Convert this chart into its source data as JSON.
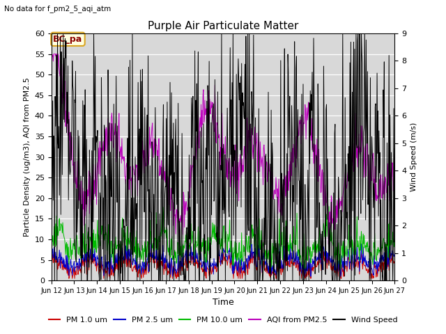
{
  "title": "Purple Air Particulate Matter",
  "subtitle": "No data for f_pm2_5_aqi_atm",
  "xlabel": "Time",
  "ylabel_left": "Particle Density (ug/m3), AQI from PM2.5",
  "ylabel_right": "Wind Speed (m/s)",
  "ylim_left": [
    0,
    60
  ],
  "ylim_right": [
    0,
    9.0
  ],
  "xlim": [
    0,
    360
  ],
  "xtick_labels": [
    "Jun 12",
    "Jun 13",
    "Jun 14",
    "Jun 15",
    "Jun 16",
    "Jun 17",
    "Jun 18",
    "Jun 19",
    "Jun 20",
    "Jun 21",
    "Jun 22",
    "Jun 23",
    "Jun 24",
    "Jun 25",
    "Jun 26",
    "Jun 27"
  ],
  "xtick_positions": [
    0,
    24,
    48,
    72,
    96,
    120,
    144,
    168,
    192,
    216,
    240,
    264,
    288,
    312,
    336,
    360
  ],
  "legend_labels": [
    "PM 1.0 um",
    "PM 2.5 um",
    "PM 10.0 um",
    "AQI from PM2.5",
    "Wind Speed"
  ],
  "legend_colors": [
    "#cc0000",
    "#0000cc",
    "#00bb00",
    "#bb00bb",
    "#000000"
  ],
  "annotation_text": "BC_pa",
  "fig_bg_color": "#ffffff",
  "plot_bg_color": "#d8d8d8",
  "yticks_left": [
    0,
    5,
    10,
    15,
    20,
    25,
    30,
    35,
    40,
    45,
    50,
    55,
    60
  ],
  "yticks_right": [
    0.0,
    1.0,
    2.0,
    3.0,
    4.0,
    5.0,
    6.0,
    7.0,
    8.0,
    9.0
  ],
  "seed": 42
}
